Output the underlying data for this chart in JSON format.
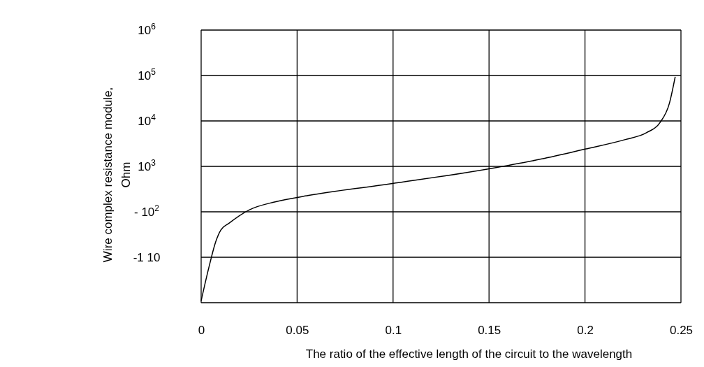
{
  "chart_data": {
    "type": "line",
    "xlabel": "The ratio of the effective length of the circuit to the wavelength",
    "ylabel": "Wire complex resistance module, Ohm",
    "x": [
      0,
      0.004,
      0.0076,
      0.0103,
      0.0145,
      0.025,
      0.0386,
      0.056,
      0.099,
      0.149,
      0.177,
      0.2,
      0.221,
      0.232,
      0.239,
      0.244,
      0.247
    ],
    "values": [
      1.1,
      5.9,
      22,
      40,
      56,
      110,
      166,
      229,
      417,
      871,
      1445,
      2399,
      3890,
      5495,
      9120,
      24547,
      93325
    ],
    "color": "#000000",
    "xlim": [
      0,
      0.25
    ],
    "xticks": [
      0,
      0.05,
      0.1,
      0.15,
      0.2,
      0.25
    ],
    "ylim": [
      1,
      1000000
    ],
    "log": true,
    "yticks": [
      {
        "value": 1,
        "label": null
      },
      {
        "value": 10,
        "label": "-1 10"
      },
      {
        "value": 100,
        "label": "- 10$^{2}$"
      },
      {
        "value": 1000,
        "label": "10$^{3}$"
      },
      {
        "value": 10000,
        "label": "10$^{4}$"
      },
      {
        "value": 100000,
        "label": "10$^{5}$"
      },
      {
        "value": 1000000,
        "label": "10$^{6}$"
      }
    ],
    "grid": true
  }
}
